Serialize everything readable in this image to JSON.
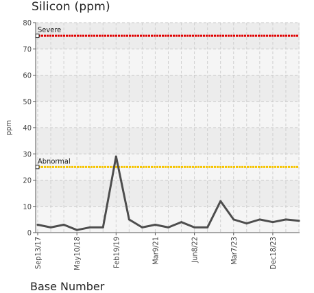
{
  "chart_data": {
    "type": "line",
    "title": "Silicon (ppm)",
    "xlabel": "Base Number",
    "ylabel": "ppm",
    "ylim": [
      0,
      80
    ],
    "yticks": [
      0,
      10,
      20,
      30,
      40,
      50,
      60,
      70,
      80
    ],
    "x_tick_labels": [
      "Sep13/17",
      "May10/18",
      "Feb19/19",
      "Mar9/21",
      "Jun8/22",
      "Mar7/23",
      "Dec18/23"
    ],
    "grid": true,
    "series": [
      {
        "color": "#4d4d4d",
        "values": [
          3,
          2,
          3,
          1,
          2,
          2,
          29,
          5,
          2,
          3,
          2,
          4,
          2,
          2,
          12,
          5,
          3.5,
          5,
          4,
          5,
          4.5
        ]
      }
    ],
    "reference_lines": [
      {
        "label": "Severe",
        "value": 75,
        "color": "#e00000"
      },
      {
        "label": "Abnormal",
        "value": 25,
        "color": "#f5c400"
      }
    ]
  }
}
